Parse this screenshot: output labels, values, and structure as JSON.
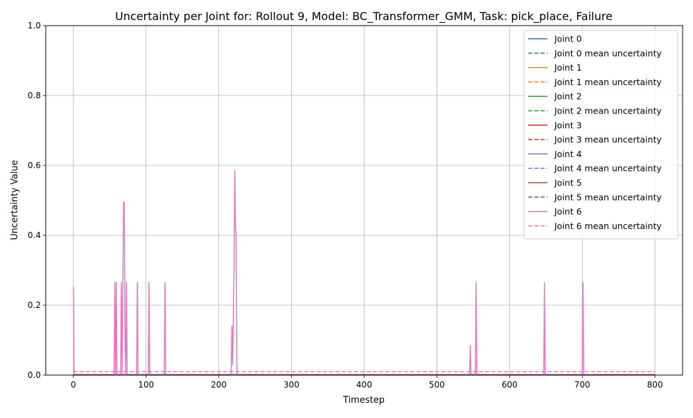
{
  "chart_data": {
    "type": "line",
    "title": "Uncertainty per Joint for: Rollout 9, Model: BC_Transformer_GMM, Task: pick_place, Failure",
    "xlabel": "Timestep",
    "ylabel": "Uncertainty Value",
    "xlim": [
      -38,
      838
    ],
    "ylim": [
      0,
      1
    ],
    "xticks": [
      "0",
      "100",
      "200",
      "300",
      "400",
      "500",
      "600",
      "700",
      "800"
    ],
    "yticks": [
      "0.0",
      "0.2",
      "0.4",
      "0.6",
      "0.8",
      "1.0"
    ],
    "grid": true,
    "legend_position": "top-right",
    "series": [
      {
        "name": "Joint 0",
        "color": "#1f77b4",
        "style": "solid",
        "points": [
          [
            0,
            0.001
          ],
          [
            800,
            0.001
          ]
        ]
      },
      {
        "name": "Joint 0 mean uncertainty",
        "color": "#1f77b4",
        "style": "dashed",
        "points": [
          [
            0,
            0.0015
          ],
          [
            800,
            0.0015
          ]
        ]
      },
      {
        "name": "Joint 1",
        "color": "#ff7f0e",
        "style": "solid",
        "points": [
          [
            0,
            0.001
          ],
          [
            800,
            0.001
          ]
        ]
      },
      {
        "name": "Joint 1 mean uncertainty",
        "color": "#ff7f0e",
        "style": "dashed",
        "points": [
          [
            0,
            0.0015
          ],
          [
            800,
            0.0015
          ]
        ]
      },
      {
        "name": "Joint 2",
        "color": "#2ca02c",
        "style": "solid",
        "points": [
          [
            0,
            0.001
          ],
          [
            800,
            0.001
          ]
        ]
      },
      {
        "name": "Joint 2 mean uncertainty",
        "color": "#2ca02c",
        "style": "dashed",
        "points": [
          [
            0,
            0.0015
          ],
          [
            800,
            0.0015
          ]
        ]
      },
      {
        "name": "Joint 3",
        "color": "#d62728",
        "style": "solid",
        "points": [
          [
            0,
            0.001
          ],
          [
            800,
            0.001
          ]
        ]
      },
      {
        "name": "Joint 3 mean uncertainty",
        "color": "#d62728",
        "style": "dashed",
        "points": [
          [
            0,
            0.0015
          ],
          [
            800,
            0.0015
          ]
        ]
      },
      {
        "name": "Joint 4",
        "color": "#9467bd",
        "style": "solid",
        "points": [
          [
            0,
            0.001
          ],
          [
            800,
            0.001
          ]
        ]
      },
      {
        "name": "Joint 4 mean uncertainty",
        "color": "#9467bd",
        "style": "dashed",
        "points": [
          [
            0,
            0.0015
          ],
          [
            800,
            0.0015
          ]
        ]
      },
      {
        "name": "Joint 5",
        "color": "#8c564b",
        "style": "solid",
        "points": [
          [
            0,
            0.001
          ],
          [
            800,
            0.001
          ]
        ]
      },
      {
        "name": "Joint 5 mean uncertainty",
        "color": "#8c564b",
        "style": "dashed",
        "points": [
          [
            0,
            0.0015
          ],
          [
            800,
            0.0015
          ]
        ]
      },
      {
        "name": "Joint 6",
        "color": "#e377c2",
        "style": "solid",
        "points": [
          [
            0,
            0.252
          ],
          [
            1,
            0.0
          ],
          [
            56,
            0.0
          ],
          [
            57,
            0.265
          ],
          [
            58,
            0.0
          ],
          [
            59,
            0.265
          ],
          [
            60,
            0.0
          ],
          [
            65,
            0.0
          ],
          [
            66,
            0.265
          ],
          [
            67,
            0.0
          ],
          [
            69,
            0.495
          ],
          [
            70,
            0.495
          ],
          [
            71,
            0.1
          ],
          [
            72,
            0.0
          ],
          [
            73,
            0.265
          ],
          [
            74,
            0.0
          ],
          [
            87,
            0.0
          ],
          [
            88,
            0.265
          ],
          [
            89,
            0.0
          ],
          [
            103,
            0.0
          ],
          [
            104,
            0.265
          ],
          [
            105,
            0.0
          ],
          [
            125,
            0.0
          ],
          [
            126,
            0.265
          ],
          [
            127,
            0.0
          ],
          [
            217,
            0.0
          ],
          [
            218,
            0.14
          ],
          [
            219,
            0.03
          ],
          [
            221,
            0.3
          ],
          [
            222,
            0.585
          ],
          [
            223,
            0.42
          ],
          [
            224,
            0.4
          ],
          [
            225,
            0.0
          ],
          [
            545,
            0.0
          ],
          [
            546,
            0.085
          ],
          [
            547,
            0.0
          ],
          [
            553,
            0.0
          ],
          [
            554,
            0.265
          ],
          [
            555,
            0.0
          ],
          [
            647,
            0.0
          ],
          [
            648,
            0.265
          ],
          [
            649,
            0.0
          ],
          [
            700,
            0.0
          ],
          [
            701,
            0.265
          ],
          [
            702,
            0.0
          ],
          [
            800,
            0.0
          ]
        ]
      },
      {
        "name": "Joint 6 mean uncertainty",
        "color": "#e377c2",
        "style": "dashed",
        "points": [
          [
            0,
            0.0098
          ],
          [
            800,
            0.0098
          ]
        ]
      }
    ]
  }
}
